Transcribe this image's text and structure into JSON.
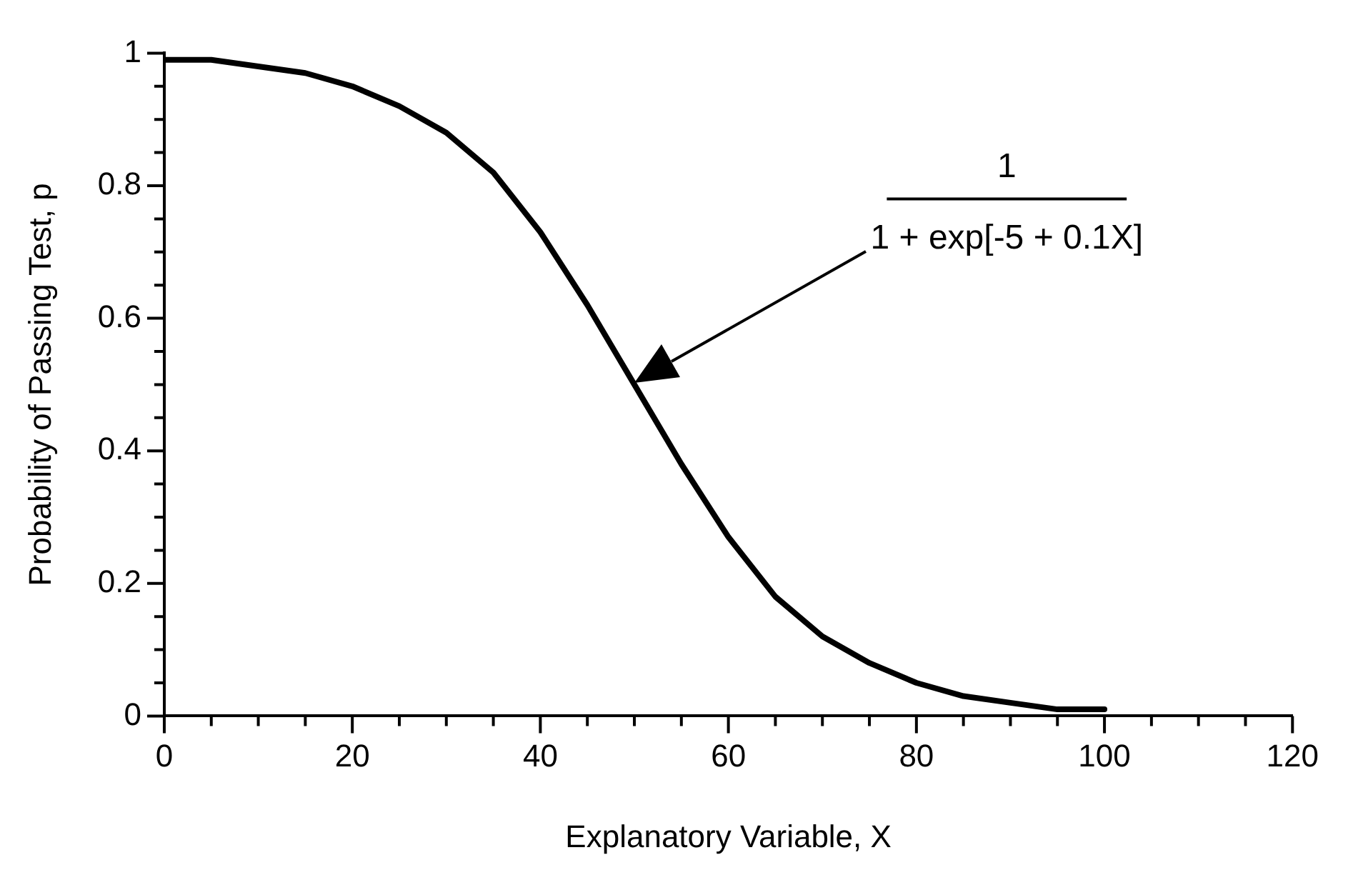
{
  "chart_data": {
    "type": "line",
    "xlabel": "Explanatory Variable, X",
    "ylabel": "Probability of Passing Test, p",
    "x": [
      0,
      5,
      10,
      15,
      20,
      25,
      30,
      35,
      40,
      45,
      50,
      55,
      60,
      65,
      70,
      75,
      80,
      85,
      90,
      95,
      100
    ],
    "series": [
      {
        "color": "#000000",
        "values": [
          0.99,
          0.99,
          0.98,
          0.97,
          0.95,
          0.92,
          0.88,
          0.82,
          0.73,
          0.62,
          0.5,
          0.38,
          0.27,
          0.18,
          0.12,
          0.08,
          0.05,
          0.03,
          0.02,
          0.01,
          0.01
        ]
      }
    ],
    "xlim": [
      0,
      120
    ],
    "xticks": [
      0,
      {
        "value": 5,
        "label": null
      },
      {
        "value": 10,
        "label": null
      },
      {
        "value": 15,
        "label": null
      },
      20,
      {
        "value": 25,
        "label": null
      },
      {
        "value": 30,
        "label": null
      },
      {
        "value": 35,
        "label": null
      },
      40,
      {
        "value": 45,
        "label": null
      },
      {
        "value": 50,
        "label": null
      },
      {
        "value": 55,
        "label": null
      },
      60,
      {
        "value": 65,
        "label": null
      },
      {
        "value": 70,
        "label": null
      },
      {
        "value": 75,
        "label": null
      },
      80,
      {
        "value": 85,
        "label": null
      },
      {
        "value": 90,
        "label": null
      },
      {
        "value": 95,
        "label": null
      },
      100,
      {
        "value": 105,
        "label": null
      },
      {
        "value": 110,
        "label": null
      },
      {
        "value": 115,
        "label": null
      },
      120
    ],
    "ylim": [
      0,
      1
    ],
    "yticks": [
      0,
      {
        "value": 0.05,
        "label": null
      },
      {
        "value": 0.1,
        "label": null
      },
      {
        "value": 0.15,
        "label": null
      },
      0.2,
      {
        "value": 0.25,
        "label": null
      },
      {
        "value": 0.3,
        "label": null
      },
      {
        "value": 0.35,
        "label": null
      },
      0.4,
      {
        "value": 0.45,
        "label": null
      },
      {
        "value": 0.5,
        "label": null
      },
      {
        "value": 0.55,
        "label": null
      },
      0.6,
      {
        "value": 0.65,
        "label": null
      },
      {
        "value": 0.7,
        "label": null
      },
      {
        "value": 0.75,
        "label": null
      },
      0.8,
      {
        "value": 0.85,
        "label": null
      },
      {
        "value": 0.9,
        "label": null
      },
      {
        "value": 0.95,
        "label": null
      },
      1
    ],
    "annotations": [
      "1\n1 + exp[-5 + 0.1X]"
    ],
    "marker": "none",
    "line_style": "solid"
  }
}
